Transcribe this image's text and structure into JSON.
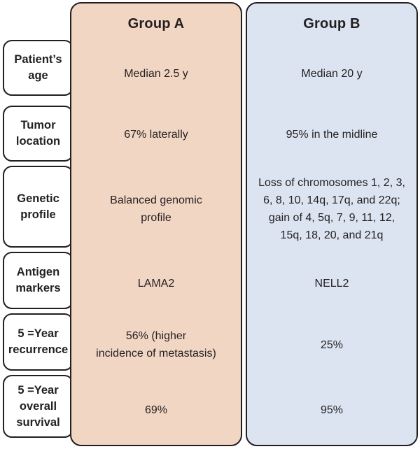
{
  "colors": {
    "page_bg": "#ffffff",
    "group_a_bg": "#f2d6c4",
    "group_b_bg": "#dce4f1",
    "label_bg": "#ffffff",
    "border": "#231f20",
    "text": "#231f20"
  },
  "columns": [
    {
      "header": "Group A"
    },
    {
      "header": "Group B"
    }
  ],
  "rows": [
    {
      "label": "Patient’s\nage",
      "group_a": "Median 2.5 y",
      "group_b": "Median 20 y"
    },
    {
      "label": "Tumor\nlocation",
      "group_a": "67% laterally",
      "group_b": "95% in the midline"
    },
    {
      "label": "Genetic\nprofile",
      "group_a": "Balanced genomic\nprofile",
      "group_b": "Loss of chromosomes 1, 2, 3,\n6, 8, 10, 14q, 17q, and 22q;\ngain of 4, 5q, 7, 9, 11, 12,\n15q, 18, 20, and 21q"
    },
    {
      "label": "Antigen\nmarkers",
      "group_a": "LAMA2",
      "group_b": "NELL2"
    },
    {
      "label": "5 =Year\nrecurrence",
      "group_a": "56% (higher\nincidence of metastasis)",
      "group_b": "25%"
    },
    {
      "label": "5 =Year\noverall\nsurvival",
      "group_a": "69%",
      "group_b": "95%"
    }
  ]
}
